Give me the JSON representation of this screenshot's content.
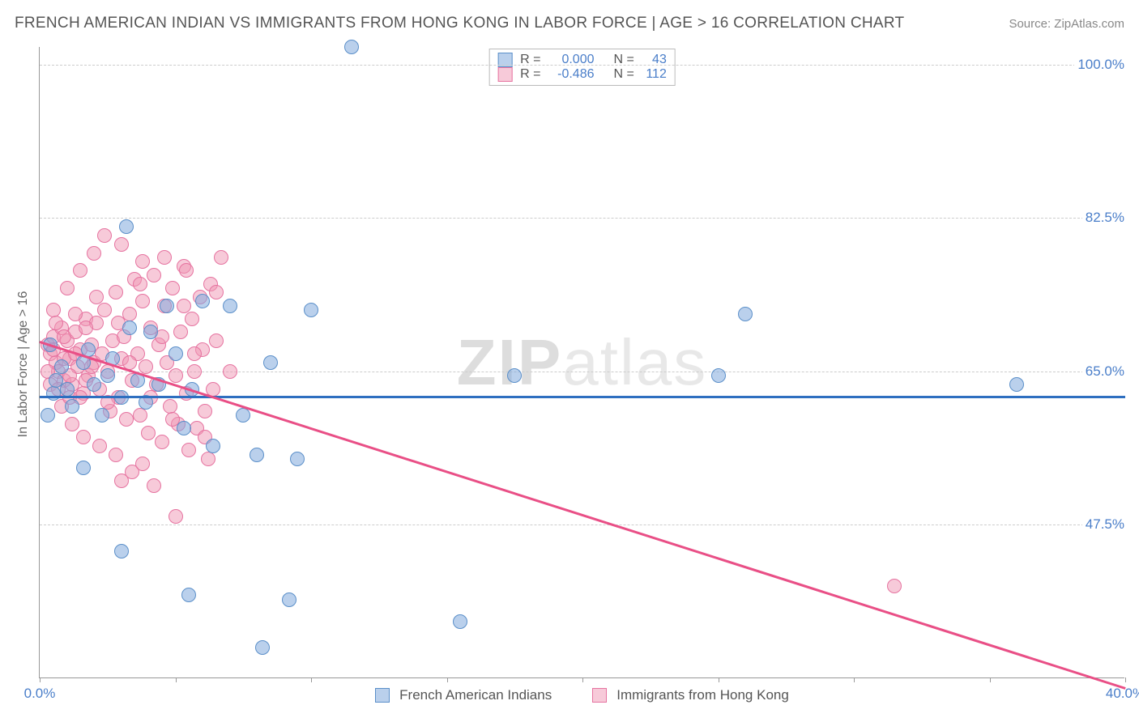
{
  "title": "FRENCH AMERICAN INDIAN VS IMMIGRANTS FROM HONG KONG IN LABOR FORCE | AGE > 16 CORRELATION CHART",
  "source": "Source: ZipAtlas.com",
  "ylabel": "In Labor Force | Age > 16",
  "watermark": {
    "a": "ZIP",
    "b": "atlas"
  },
  "chart": {
    "type": "scatter",
    "xlim": [
      0,
      40
    ],
    "ylim": [
      30,
      102
    ],
    "yticks": [
      47.5,
      65.0,
      82.5,
      100.0
    ],
    "ytick_labels": [
      "47.5%",
      "65.0%",
      "82.5%",
      "100.0%"
    ],
    "xticks": [
      0,
      5,
      10,
      15,
      20,
      25,
      30,
      35,
      40
    ],
    "xtick_labels": {
      "0": "0.0%",
      "40": "40.0%"
    },
    "grid_color": "#cccccc",
    "background_color": "#ffffff",
    "axis_color": "#999999"
  },
  "series": {
    "blue": {
      "label": "French American Indians",
      "R": "0.000",
      "N": "43",
      "fill": "rgba(130,170,220,0.55)",
      "stroke": "#5b8fc9",
      "trend_color": "#2e6fc0",
      "marker_radius": 9,
      "trend": {
        "y_at_x0": 62.2,
        "y_at_xmax": 62.2
      },
      "points": [
        [
          11.5,
          102.0
        ],
        [
          3.2,
          81.5
        ],
        [
          1.6,
          66.0
        ],
        [
          0.4,
          68.0
        ],
        [
          0.8,
          65.5
        ],
        [
          1.0,
          63.0
        ],
        [
          1.2,
          61.0
        ],
        [
          0.5,
          62.5
        ],
        [
          0.6,
          64.0
        ],
        [
          1.8,
          67.5
        ],
        [
          2.0,
          63.5
        ],
        [
          2.3,
          60.0
        ],
        [
          2.5,
          64.5
        ],
        [
          2.7,
          66.5
        ],
        [
          3.0,
          62.0
        ],
        [
          3.3,
          70.0
        ],
        [
          3.6,
          64.0
        ],
        [
          3.9,
          61.5
        ],
        [
          4.1,
          69.5
        ],
        [
          4.4,
          63.5
        ],
        [
          4.7,
          72.5
        ],
        [
          5.0,
          67.0
        ],
        [
          5.3,
          58.5
        ],
        [
          5.6,
          63.0
        ],
        [
          6.0,
          73.0
        ],
        [
          6.4,
          56.5
        ],
        [
          7.0,
          72.5
        ],
        [
          7.5,
          60.0
        ],
        [
          8.0,
          55.5
        ],
        [
          8.5,
          66.0
        ],
        [
          9.5,
          55.0
        ],
        [
          10.0,
          72.0
        ],
        [
          1.6,
          54.0
        ],
        [
          3.0,
          44.5
        ],
        [
          5.5,
          39.5
        ],
        [
          8.2,
          33.5
        ],
        [
          9.2,
          39.0
        ],
        [
          15.5,
          36.5
        ],
        [
          17.5,
          64.5
        ],
        [
          25.0,
          64.5
        ],
        [
          26.0,
          71.5
        ],
        [
          36.0,
          63.5
        ],
        [
          0.3,
          60.0
        ]
      ]
    },
    "pink": {
      "label": "Immigrants from Hong Kong",
      "R": "-0.486",
      "N": "112",
      "fill": "rgba(240,150,180,0.50)",
      "stroke": "#e673a0",
      "trend_color": "#e94f86",
      "marker_radius": 9,
      "trend": {
        "y_at_x0": 68.5,
        "y_at_xmax": 29.0
      },
      "points": [
        [
          0.3,
          68.0
        ],
        [
          0.4,
          67.0
        ],
        [
          0.5,
          69.0
        ],
        [
          0.6,
          66.0
        ],
        [
          0.7,
          65.0
        ],
        [
          0.8,
          70.0
        ],
        [
          0.9,
          64.0
        ],
        [
          1.0,
          68.5
        ],
        [
          1.1,
          66.5
        ],
        [
          1.2,
          63.5
        ],
        [
          1.3,
          69.5
        ],
        [
          1.4,
          65.5
        ],
        [
          1.5,
          67.5
        ],
        [
          1.6,
          62.5
        ],
        [
          1.7,
          71.0
        ],
        [
          1.8,
          64.5
        ],
        [
          1.9,
          68.0
        ],
        [
          2.0,
          66.0
        ],
        [
          2.1,
          70.5
        ],
        [
          2.2,
          63.0
        ],
        [
          2.3,
          67.0
        ],
        [
          2.4,
          72.0
        ],
        [
          2.5,
          65.0
        ],
        [
          2.6,
          60.5
        ],
        [
          2.7,
          68.5
        ],
        [
          2.8,
          74.0
        ],
        [
          2.9,
          62.0
        ],
        [
          3.0,
          66.5
        ],
        [
          3.1,
          69.0
        ],
        [
          3.2,
          59.5
        ],
        [
          3.3,
          71.5
        ],
        [
          3.4,
          64.0
        ],
        [
          3.5,
          75.5
        ],
        [
          3.6,
          67.0
        ],
        [
          3.7,
          60.0
        ],
        [
          3.8,
          73.0
        ],
        [
          3.9,
          65.5
        ],
        [
          4.0,
          58.0
        ],
        [
          4.1,
          70.0
        ],
        [
          4.2,
          76.0
        ],
        [
          4.3,
          63.5
        ],
        [
          4.4,
          68.0
        ],
        [
          4.5,
          57.0
        ],
        [
          4.6,
          72.5
        ],
        [
          4.7,
          66.0
        ],
        [
          4.8,
          61.0
        ],
        [
          4.9,
          74.5
        ],
        [
          5.0,
          64.5
        ],
        [
          5.1,
          59.0
        ],
        [
          5.2,
          69.5
        ],
        [
          5.3,
          77.0
        ],
        [
          5.4,
          62.5
        ],
        [
          5.5,
          56.0
        ],
        [
          5.6,
          71.0
        ],
        [
          5.7,
          65.0
        ],
        [
          5.8,
          58.5
        ],
        [
          5.9,
          73.5
        ],
        [
          6.0,
          67.5
        ],
        [
          6.1,
          60.5
        ],
        [
          6.2,
          55.0
        ],
        [
          6.3,
          75.0
        ],
        [
          6.4,
          63.0
        ],
        [
          6.5,
          68.5
        ],
        [
          6.7,
          78.0
        ],
        [
          2.4,
          80.5
        ],
        [
          0.5,
          72.0
        ],
        [
          1.0,
          74.5
        ],
        [
          1.5,
          76.5
        ],
        [
          2.0,
          78.5
        ],
        [
          0.8,
          61.0
        ],
        [
          1.2,
          59.0
        ],
        [
          1.6,
          57.5
        ],
        [
          2.2,
          56.5
        ],
        [
          2.8,
          55.5
        ],
        [
          3.4,
          53.5
        ],
        [
          0.4,
          63.5
        ],
        [
          0.6,
          70.5
        ],
        [
          0.9,
          66.5
        ],
        [
          1.1,
          62.0
        ],
        [
          1.3,
          71.5
        ],
        [
          1.7,
          64.0
        ],
        [
          2.1,
          73.5
        ],
        [
          2.5,
          61.5
        ],
        [
          2.9,
          70.5
        ],
        [
          3.3,
          66.0
        ],
        [
          3.7,
          75.0
        ],
        [
          4.1,
          62.0
        ],
        [
          4.5,
          69.0
        ],
        [
          4.9,
          59.5
        ],
        [
          5.3,
          72.5
        ],
        [
          5.7,
          67.0
        ],
        [
          6.1,
          57.5
        ],
        [
          6.5,
          74.0
        ],
        [
          3.0,
          79.5
        ],
        [
          3.8,
          77.5
        ],
        [
          4.6,
          78.0
        ],
        [
          5.4,
          76.5
        ],
        [
          0.3,
          65.0
        ],
        [
          0.5,
          67.5
        ],
        [
          0.7,
          63.0
        ],
        [
          0.9,
          69.0
        ],
        [
          1.1,
          64.5
        ],
        [
          1.3,
          67.0
        ],
        [
          1.5,
          62.0
        ],
        [
          1.7,
          70.0
        ],
        [
          1.9,
          65.5
        ],
        [
          3.8,
          54.5
        ],
        [
          5.0,
          48.5
        ],
        [
          4.2,
          52.0
        ],
        [
          3.0,
          52.5
        ],
        [
          31.5,
          40.5
        ],
        [
          7.0,
          65.0
        ]
      ]
    }
  },
  "stats_labels": {
    "R": "R =",
    "N": "N ="
  }
}
